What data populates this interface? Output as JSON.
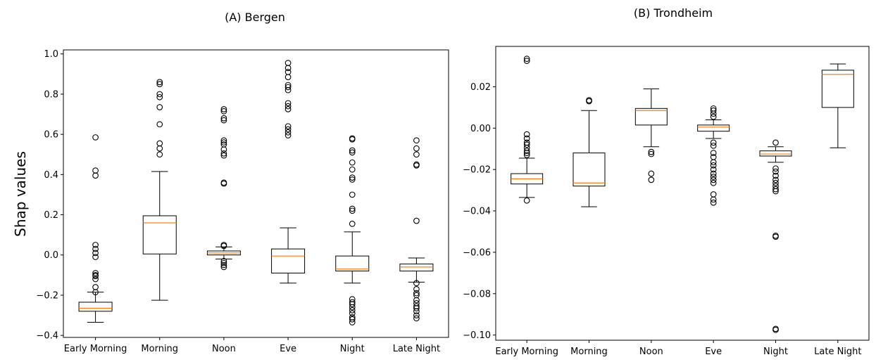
{
  "chart_data": [
    {
      "type": "box",
      "title": "(A) Bergen",
      "ylabel": "Shap values",
      "xlabel": "",
      "ylim": [
        -0.41,
        1.02
      ],
      "yticks": [
        -0.4,
        -0.2,
        0.0,
        0.2,
        0.4,
        0.6,
        0.8,
        1.0
      ],
      "ytick_labels": [
        "−0.4",
        "−0.2",
        "0.0",
        "0.2",
        "0.4",
        "0.6",
        "0.8",
        "1.0"
      ],
      "grid": false,
      "categories": [
        "Early Morning",
        "Morning",
        "Noon",
        "Eve",
        "Night",
        "Late Night"
      ],
      "boxes": [
        {
          "whislo": -0.335,
          "q1": -0.28,
          "med": -0.265,
          "q3": -0.235,
          "whishi": -0.185,
          "fliers": [
            0.585,
            0.42,
            0.395,
            0.05,
            0.03,
            0.01,
            -0.01,
            -0.09,
            -0.1,
            -0.105,
            -0.12,
            -0.16,
            -0.185
          ]
        },
        {
          "whislo": -0.225,
          "q1": 0.005,
          "med": 0.16,
          "q3": 0.195,
          "whishi": 0.415,
          "fliers": [
            0.86,
            0.85,
            0.8,
            0.785,
            0.735,
            0.65,
            0.555,
            0.53,
            0.5
          ]
        },
        {
          "whislo": -0.02,
          "q1": 0.0,
          "med": 0.01,
          "q3": 0.02,
          "whishi": 0.04,
          "fliers": [
            0.725,
            0.715,
            0.68,
            0.67,
            0.57,
            0.56,
            0.55,
            0.525,
            0.505,
            0.495,
            0.36,
            0.355,
            0.05,
            0.045,
            -0.03,
            -0.04,
            -0.05,
            -0.06
          ]
        },
        {
          "whislo": -0.14,
          "q1": -0.09,
          "med": -0.005,
          "q3": 0.03,
          "whishi": 0.135,
          "fliers": [
            0.955,
            0.93,
            0.91,
            0.885,
            0.845,
            0.835,
            0.82,
            0.755,
            0.74,
            0.725,
            0.64,
            0.625,
            0.61,
            0.595
          ]
        },
        {
          "whislo": -0.14,
          "q1": -0.08,
          "med": -0.07,
          "q3": -0.005,
          "whishi": 0.115,
          "fliers": [
            0.58,
            0.575,
            0.52,
            0.51,
            0.46,
            0.425,
            0.385,
            0.375,
            0.3,
            0.23,
            0.22,
            0.155,
            -0.22,
            -0.235,
            -0.245,
            -0.26,
            -0.275,
            -0.29,
            -0.31,
            -0.32,
            -0.335
          ]
        },
        {
          "whislo": -0.135,
          "q1": -0.08,
          "med": -0.06,
          "q3": -0.045,
          "whishi": -0.015,
          "fliers": [
            0.57,
            0.53,
            0.5,
            0.45,
            0.445,
            0.17,
            -0.14,
            -0.17,
            -0.19,
            -0.2,
            -0.225,
            -0.24,
            -0.255,
            -0.265,
            -0.28,
            -0.3,
            -0.315
          ]
        }
      ]
    },
    {
      "type": "box",
      "title": "(B) Trondheim",
      "ylabel": "",
      "xlabel": "",
      "ylim": [
        -0.1025,
        0.0395
      ],
      "yticks": [
        -0.1,
        -0.08,
        -0.06,
        -0.04,
        -0.02,
        0.0,
        0.02
      ],
      "ytick_labels": [
        "−0.10",
        "−0.08",
        "−0.06",
        "−0.04",
        "−0.02",
        "0.00",
        "0.02"
      ],
      "grid": false,
      "categories": [
        "Early Morning",
        "Morning",
        "Noon",
        "Eve",
        "Night",
        "Late Night"
      ],
      "boxes": [
        {
          "whislo": -0.0335,
          "q1": -0.027,
          "med": -0.0245,
          "q3": -0.022,
          "whishi": -0.0145,
          "fliers": [
            0.0335,
            0.0325,
            -0.003,
            -0.005,
            -0.007,
            -0.008,
            -0.0095,
            -0.011,
            -0.012,
            -0.013,
            -0.035
          ]
        },
        {
          "whislo": -0.038,
          "q1": -0.028,
          "med": -0.0265,
          "q3": -0.012,
          "whishi": 0.0085,
          "fliers": [
            0.0135,
            0.013
          ]
        },
        {
          "whislo": -0.009,
          "q1": 0.0015,
          "med": 0.0085,
          "q3": 0.0095,
          "whishi": 0.019,
          "fliers": [
            -0.0115,
            -0.0125,
            -0.022,
            -0.025
          ]
        },
        {
          "whislo": -0.005,
          "q1": -0.0015,
          "med": 0.0005,
          "q3": 0.0015,
          "whishi": 0.004,
          "fliers": [
            0.0095,
            0.0085,
            0.007,
            0.0055,
            -0.007,
            -0.0085,
            -0.012,
            -0.014,
            -0.0165,
            -0.018,
            -0.02,
            -0.022,
            -0.0235,
            -0.025,
            -0.0265,
            -0.032,
            -0.0345,
            -0.036
          ]
        },
        {
          "whislo": -0.0165,
          "q1": -0.0135,
          "med": -0.0125,
          "q3": -0.011,
          "whishi": -0.009,
          "fliers": [
            -0.007,
            -0.0195,
            -0.021,
            -0.023,
            -0.025,
            -0.0265,
            -0.028,
            -0.0295,
            -0.0305,
            -0.052,
            -0.0525,
            -0.097,
            -0.0975
          ]
        },
        {
          "whislo": -0.0095,
          "q1": 0.01,
          "med": 0.026,
          "q3": 0.028,
          "whishi": 0.031,
          "fliers": []
        }
      ]
    }
  ]
}
